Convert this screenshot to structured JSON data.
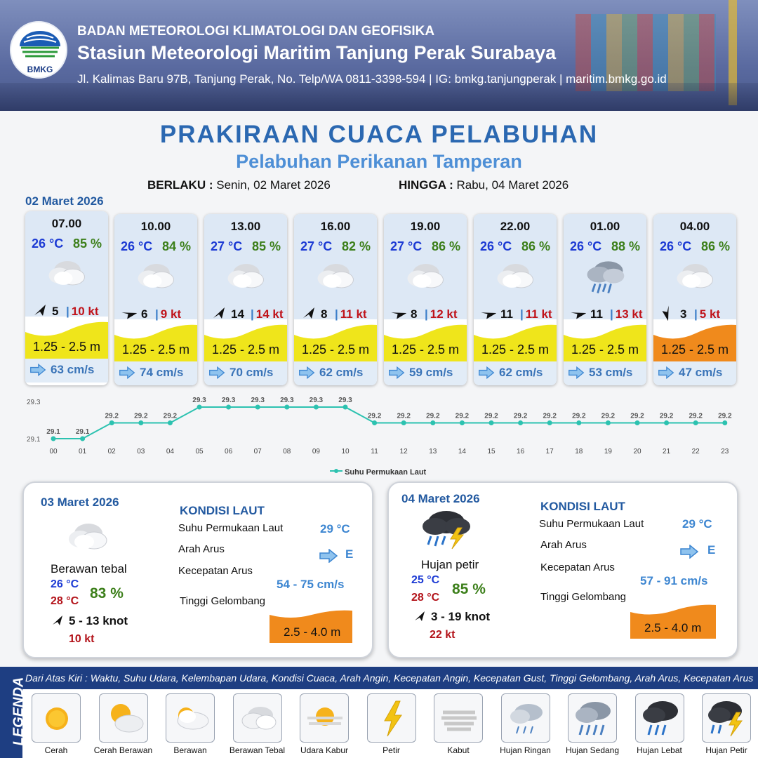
{
  "header": {
    "agency": "BADAN METEOROLOGI KLIMATOLOGI DAN GEOFISIKA",
    "station": "Stasiun Meteorologi Maritim Tanjung Perak Surabaya",
    "address": "Jl. Kalimas Baru 97B, Tanjung Perak, No. Telp/WA 0811-3398-594 | IG: bmkg.tanjungperak | maritim.bmkg.go.id",
    "logo_text": "BMKG"
  },
  "title": "PRAKIRAAN CUACA PELABUHAN",
  "subtitle": "Pelabuhan Perikanan Tamperan",
  "validity": {
    "from_label": "BERLAKU :",
    "from_value": "Senin, 02 Maret 2026",
    "to_label": "HINGGA :",
    "to_value": "Rabu, 04 Maret 2026"
  },
  "day1": {
    "date": "02 Maret 2026",
    "cards": [
      {
        "time": "07.00",
        "temp": "26 °C",
        "hum": "85 %",
        "icon": "overcast-icon",
        "wind": "5",
        "gust": "10 kt",
        "wave": "1.25 - 2.5 m",
        "wave_color": "#efe51b",
        "current": "63 cm/s",
        "wind_dir_deg": 45
      },
      {
        "time": "10.00",
        "temp": "26 °C",
        "hum": "84 %",
        "icon": "overcast-icon",
        "wind": "6",
        "gust": "9 kt",
        "wave": "1.25 - 2.5 m",
        "wave_color": "#efe51b",
        "current": "74 cm/s",
        "wind_dir_deg": 90
      },
      {
        "time": "13.00",
        "temp": "27 °C",
        "hum": "85 %",
        "icon": "overcast-icon",
        "wind": "14",
        "gust": "14 kt",
        "wave": "1.25 - 2.5 m",
        "wave_color": "#efe51b",
        "current": "70 cm/s",
        "wind_dir_deg": 45
      },
      {
        "time": "16.00",
        "temp": "27 °C",
        "hum": "82 %",
        "icon": "overcast-icon",
        "wind": "8",
        "gust": "11 kt",
        "wave": "1.25 - 2.5 m",
        "wave_color": "#efe51b",
        "current": "62 cm/s",
        "wind_dir_deg": 45
      },
      {
        "time": "19.00",
        "temp": "27 °C",
        "hum": "86 %",
        "icon": "overcast-icon",
        "wind": "8",
        "gust": "12 kt",
        "wave": "1.25 - 2.5 m",
        "wave_color": "#efe51b",
        "current": "59 cm/s",
        "wind_dir_deg": 90
      },
      {
        "time": "22.00",
        "temp": "26 °C",
        "hum": "86 %",
        "icon": "overcast-icon",
        "wind": "11",
        "gust": "11 kt",
        "wave": "1.25 - 2.5 m",
        "wave_color": "#efe51b",
        "current": "62 cm/s",
        "wind_dir_deg": 90
      },
      {
        "time": "01.00",
        "temp": "26 °C",
        "hum": "88 %",
        "icon": "moderate-rain-icon",
        "wind": "11",
        "gust": "13 kt",
        "wave": "1.25 - 2.5 m",
        "wave_color": "#efe51b",
        "current": "53 cm/s",
        "wind_dir_deg": 90
      },
      {
        "time": "04.00",
        "temp": "26 °C",
        "hum": "86 %",
        "icon": "overcast-icon",
        "wind": "3",
        "gust": "5 kt",
        "wave": "1.25 - 2.5 m",
        "wave_color": "#f08a1c",
        "current": "47 cm/s",
        "wind_dir_deg": 180
      }
    ]
  },
  "chart_data": {
    "type": "line",
    "x": [
      "00",
      "01",
      "02",
      "03",
      "04",
      "05",
      "06",
      "07",
      "08",
      "09",
      "10",
      "11",
      "12",
      "13",
      "14",
      "15",
      "16",
      "17",
      "18",
      "19",
      "20",
      "21",
      "22",
      "23"
    ],
    "series": [
      {
        "name": "Suhu Permukaan Laut",
        "values": [
          29.1,
          29.1,
          29.2,
          29.2,
          29.2,
          29.3,
          29.3,
          29.3,
          29.3,
          29.3,
          29.3,
          29.2,
          29.2,
          29.2,
          29.2,
          29.2,
          29.2,
          29.2,
          29.2,
          29.2,
          29.2,
          29.2,
          29.2,
          29.2
        ],
        "color": "#2cc2b0"
      }
    ],
    "y_ticks": [
      "29.3",
      "29.1"
    ],
    "ylim": [
      29.1,
      29.3
    ],
    "legend": "bottom-center"
  },
  "day2": {
    "date": "03 Maret 2026",
    "weather": "Berawan tebal",
    "icon": "overcast-icon",
    "temp_min": "26 °C",
    "temp_max": "28 °C",
    "humidity": "83 %",
    "wind": "5  - 13 knot",
    "gust": "10 kt",
    "sea": {
      "heading": "KONDISI LAUT",
      "sst_label": "Suhu Permukaan Laut",
      "sst": "29 °C",
      "dir_label": "Arah Arus",
      "dir": "E",
      "speed_label": "Kecepatan Arus",
      "speed": "54  - 75 cm/s",
      "wave_label": "Tinggi Gelombang",
      "wave": "2.5 - 4.0 m",
      "wave_color": "#f08a1c"
    }
  },
  "day3": {
    "date": "04 Maret 2026",
    "weather": "Hujan petir",
    "icon": "thunderstorm-icon",
    "temp_min": "25 °C",
    "temp_max": "28 °C",
    "humidity": "85 %",
    "wind": "3  - 19 knot",
    "gust": "22 kt",
    "sea": {
      "heading": "KONDISI LAUT",
      "sst_label": "Suhu Permukaan Laut",
      "sst": "29 °C",
      "dir_label": "Arah Arus",
      "dir": "E",
      "speed_label": "Kecepatan Arus",
      "speed": "57 - 91 cm/s",
      "wave_label": "Tinggi Gelombang",
      "wave": "2.5 - 4.0 m",
      "wave_color": "#f08a1c"
    }
  },
  "legend": {
    "title": "LEGENDA",
    "description": "Dari Atas Kiri : Waktu, Suhu Udara, Kelembapan Udara, Kondisi Cuaca, Arah Angin, Kecepatan Angin, Kecepatan Gust, Tinggi Gelombang, Arah Arus, Kecepatan Arus",
    "items": [
      {
        "label": "Cerah",
        "icon": "sun-icon"
      },
      {
        "label": "Cerah Berawan",
        "icon": "sun-cloud-icon"
      },
      {
        "label": "Berawan",
        "icon": "cloudy-icon"
      },
      {
        "label": "Berawan Tebal",
        "icon": "overcast-icon"
      },
      {
        "label": "Udara Kabur",
        "icon": "haze-icon"
      },
      {
        "label": "Petir",
        "icon": "lightning-icon"
      },
      {
        "label": "Kabut",
        "icon": "fog-icon"
      },
      {
        "label": "Hujan Ringan",
        "icon": "light-rain-icon"
      },
      {
        "label": "Hujan Sedang",
        "icon": "moderate-rain-icon"
      },
      {
        "label": "Hujan Lebat",
        "icon": "heavy-rain-icon"
      },
      {
        "label": "Hujan Petir",
        "icon": "thunderstorm-icon"
      }
    ]
  }
}
